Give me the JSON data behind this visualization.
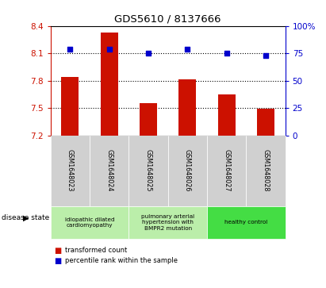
{
  "title": "GDS5610 / 8137666",
  "samples": [
    "GSM1648023",
    "GSM1648024",
    "GSM1648025",
    "GSM1648026",
    "GSM1648027",
    "GSM1648028"
  ],
  "bar_values": [
    7.84,
    8.33,
    7.55,
    7.81,
    7.65,
    7.49
  ],
  "bar_bottom": 7.2,
  "percentile_values": [
    79,
    79,
    75,
    79,
    75,
    73
  ],
  "bar_color": "#cc1100",
  "dot_color": "#0000cc",
  "ylim_left": [
    7.2,
    8.4
  ],
  "ylim_right": [
    0,
    100
  ],
  "yticks_left": [
    7.2,
    7.5,
    7.8,
    8.1,
    8.4
  ],
  "yticks_right": [
    0,
    25,
    50,
    75,
    100
  ],
  "ytick_labels_left": [
    "7.2",
    "7.5",
    "7.8",
    "8.1",
    "8.4"
  ],
  "ytick_labels_right": [
    "0",
    "25",
    "50",
    "75",
    "100%"
  ],
  "hlines": [
    7.5,
    7.8,
    8.1
  ],
  "disease_groups": [
    {
      "label": "idiopathic dilated\ncardiomyopathy",
      "span": [
        0,
        2
      ],
      "color": "#bbeeaa"
    },
    {
      "label": "pulmonary arterial\nhypertension with\nBMPR2 mutation",
      "span": [
        2,
        4
      ],
      "color": "#bbeeaa"
    },
    {
      "label": "healthy control",
      "span": [
        4,
        6
      ],
      "color": "#44dd44"
    }
  ],
  "disease_state_label": "disease state",
  "legend_bar_label": "transformed count",
  "legend_dot_label": "percentile rank within the sample",
  "bar_width": 0.45,
  "figsize": [
    4.11,
    3.63
  ],
  "dpi": 100
}
